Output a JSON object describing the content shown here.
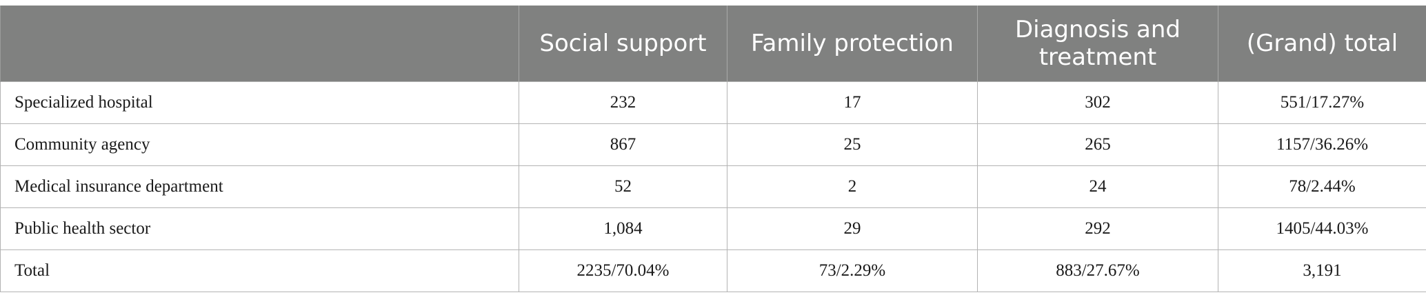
{
  "table": {
    "headers": [
      "",
      "Social support",
      "Family protection",
      "Diagnosis and treatment",
      "(Grand) total"
    ],
    "rows": [
      [
        "Specialized hospital",
        "232",
        "17",
        "302",
        "551/17.27%"
      ],
      [
        "Community agency",
        "867",
        "25",
        "265",
        "1157/36.26%"
      ],
      [
        "Medical insurance department",
        "52",
        "2",
        "24",
        "78/2.44%"
      ],
      [
        "Public health sector",
        "1,084",
        "29",
        "292",
        "1405/44.03%"
      ],
      [
        "Total",
        "2235/70.04%",
        "73/2.29%",
        "883/27.67%",
        "3,191"
      ]
    ]
  }
}
